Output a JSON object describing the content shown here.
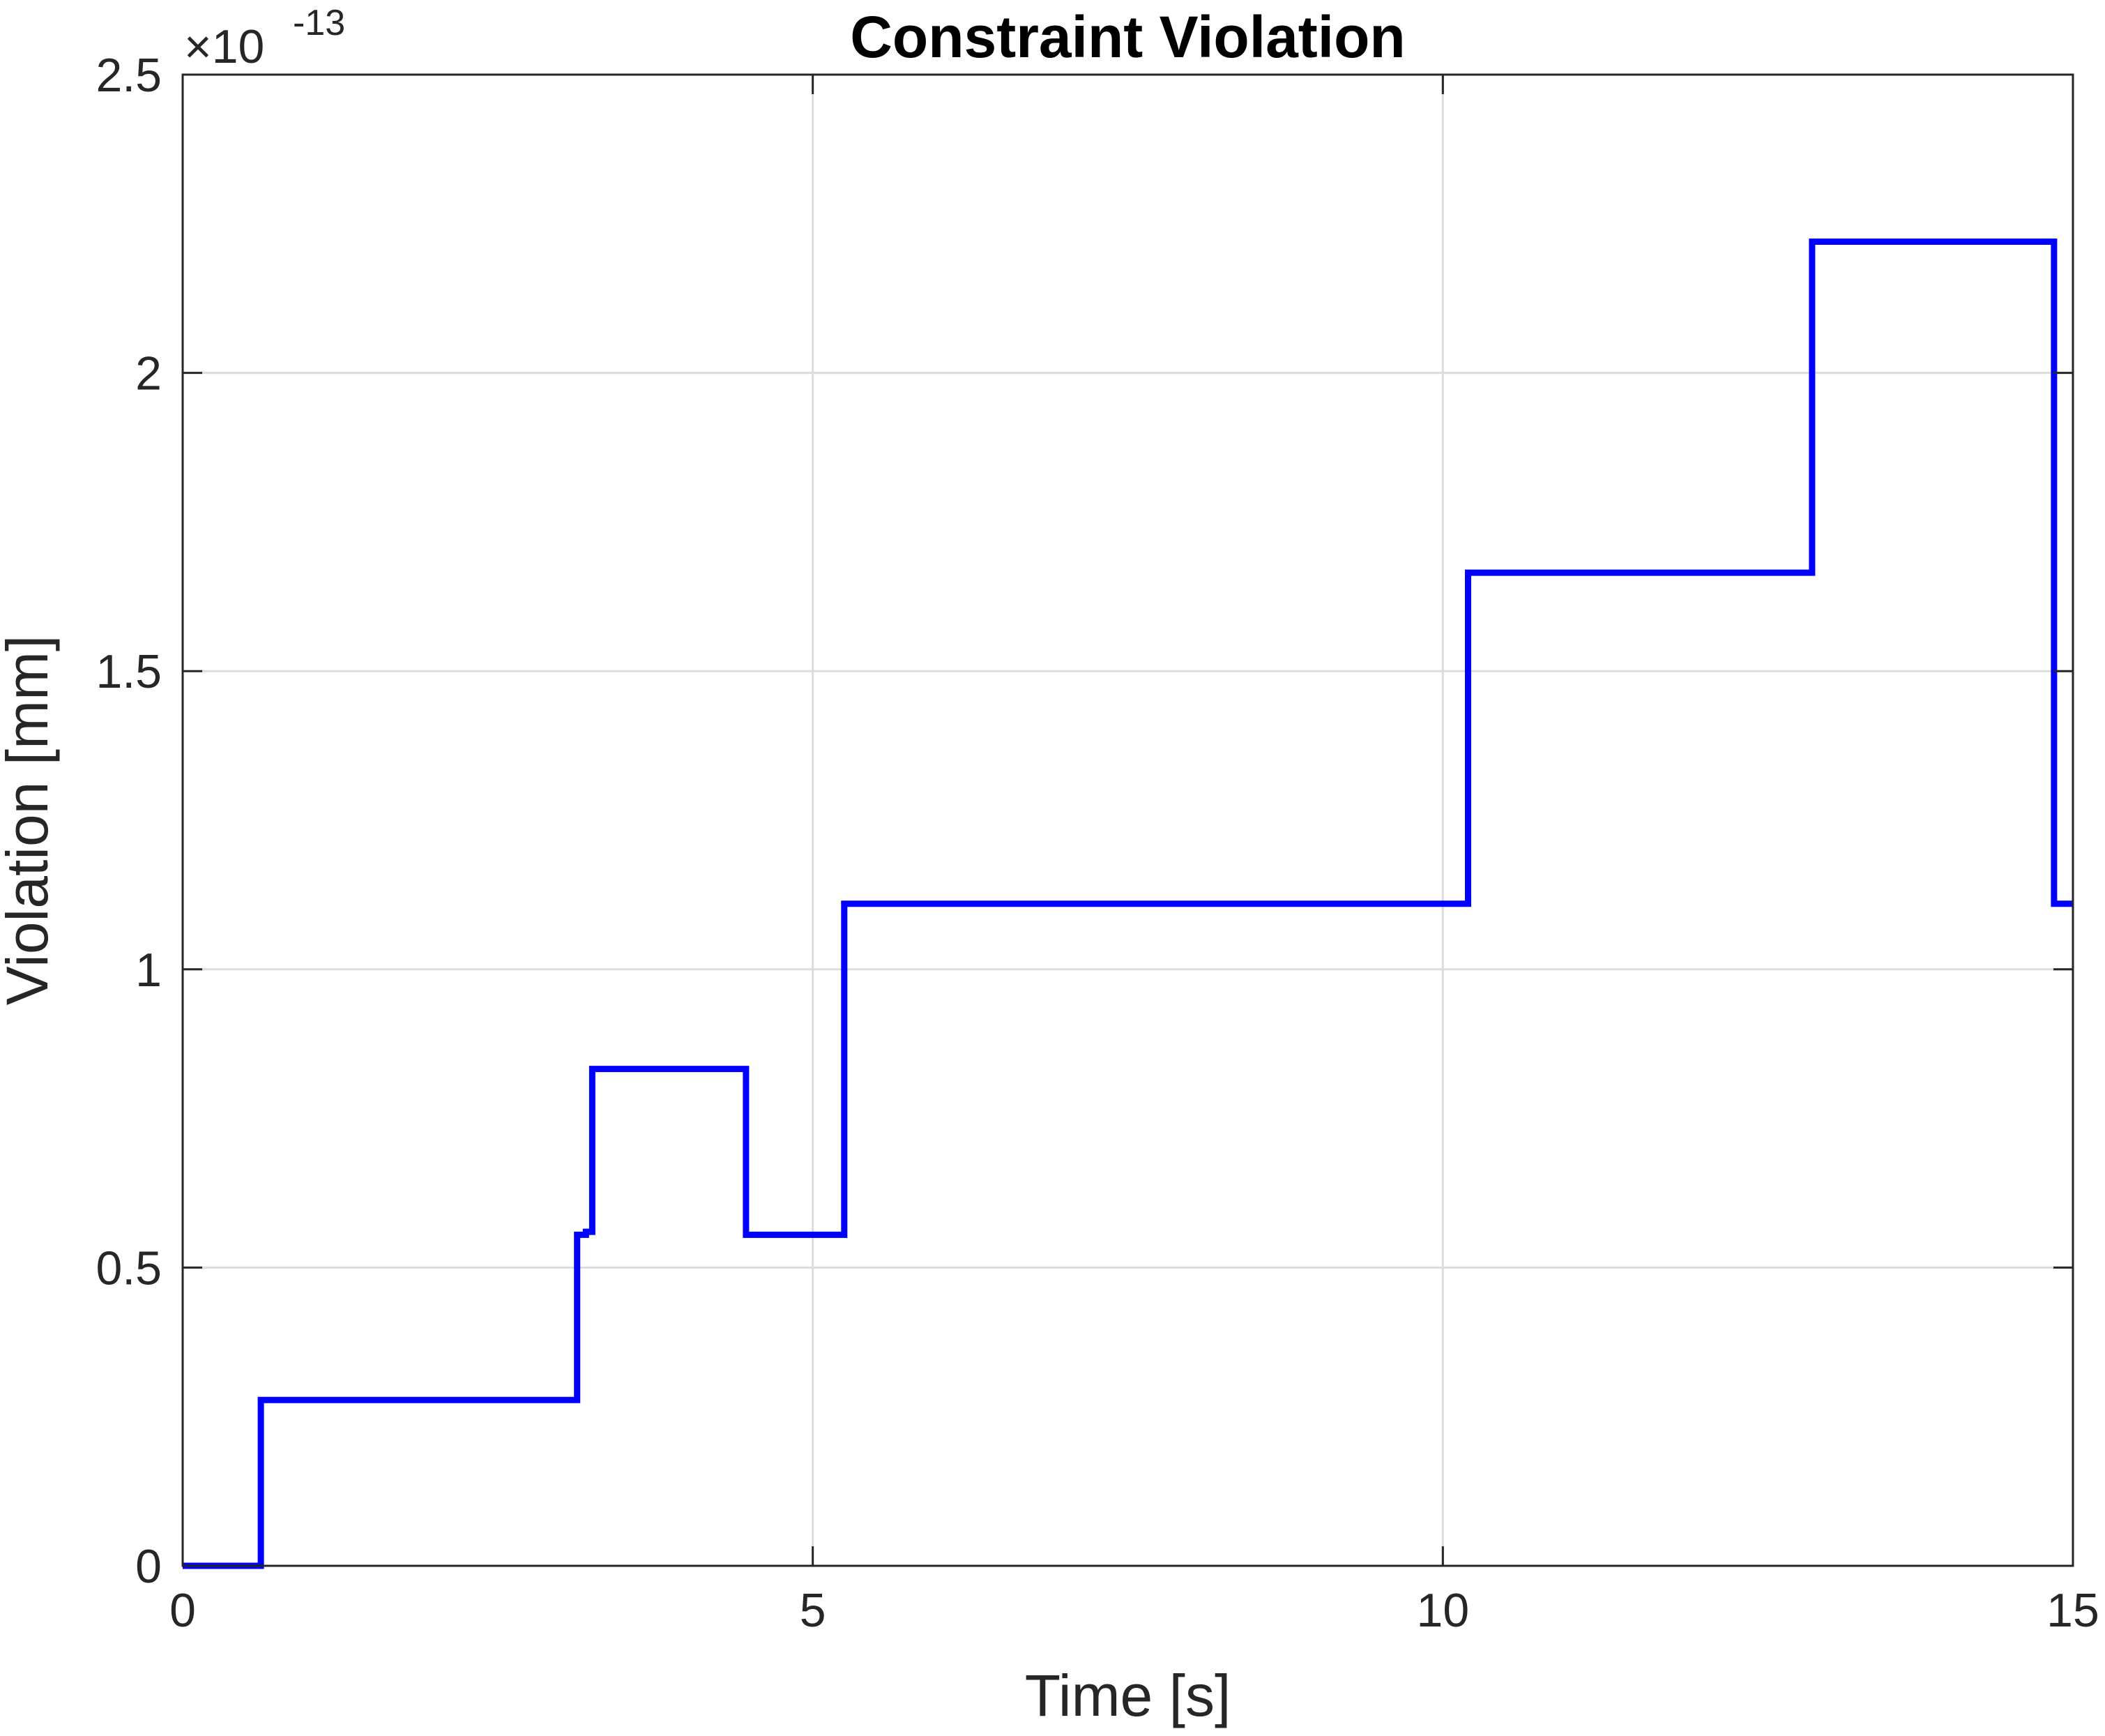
{
  "chart_data": {
    "type": "line",
    "title": "Constraint Violation",
    "xlabel": "Time [s]",
    "ylabel": "Violation [mm]",
    "y_exponent_base": "×10",
    "y_exponent_power": "-13",
    "xlim": [
      0,
      15
    ],
    "ylim": [
      0,
      2.5
    ],
    "x_ticks": [
      0,
      5,
      10,
      15
    ],
    "x_tick_labels": [
      "0",
      "5",
      "10",
      "15"
    ],
    "y_ticks": [
      0,
      0.5,
      1,
      1.5,
      2,
      2.5
    ],
    "y_tick_labels": [
      "0",
      "0.5",
      "1",
      "1.5",
      "2",
      "2.5"
    ],
    "grid": true,
    "line_style": "step",
    "colors": {
      "series": "#0000ff",
      "grid": "#dcdcdc",
      "axis": "#262626"
    },
    "series": [
      {
        "x": [
          0,
          0.62,
          0.62,
          3.13,
          3.13,
          3.2,
          3.2,
          3.25,
          3.25,
          4.47,
          4.47,
          5.25,
          5.25,
          10.2,
          10.2,
          12.93,
          12.93,
          14.85,
          14.85,
          15
        ],
        "y": [
          0,
          0,
          0.278,
          0.278,
          0.555,
          0.555,
          0.56,
          0.56,
          0.833,
          0.833,
          0.555,
          0.555,
          1.11,
          1.11,
          1.665,
          1.665,
          2.22,
          2.22,
          1.11,
          1.11
        ]
      }
    ]
  }
}
